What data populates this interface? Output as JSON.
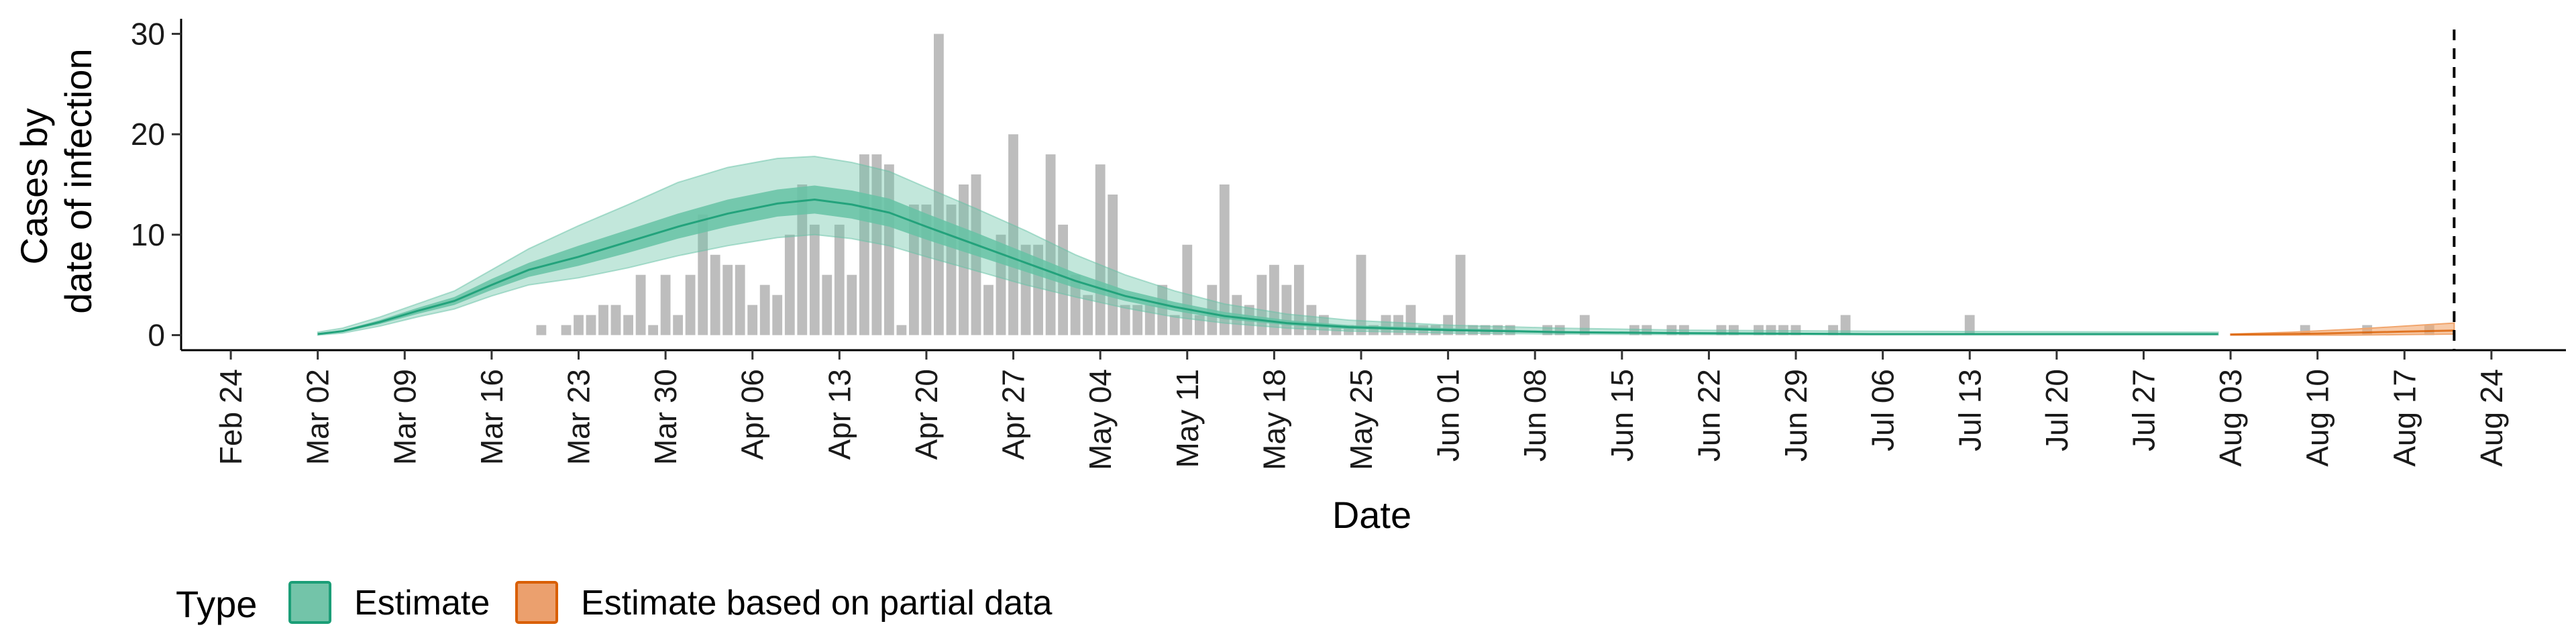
{
  "chart_data": {
    "type": "bar",
    "title": "",
    "xlabel": "Date",
    "ylabel_lines": [
      "Cases by",
      "date of infection"
    ],
    "y_ticks": [
      0,
      10,
      20,
      30
    ],
    "ylim": [
      -1.5,
      31.5
    ],
    "xlim": [
      "2020-02-20",
      "2020-08-30"
    ],
    "x_tick_dates": [
      "2020-02-24",
      "2020-03-02",
      "2020-03-09",
      "2020-03-16",
      "2020-03-23",
      "2020-03-30",
      "2020-04-06",
      "2020-04-13",
      "2020-04-20",
      "2020-04-27",
      "2020-05-04",
      "2020-05-11",
      "2020-05-18",
      "2020-05-25",
      "2020-06-01",
      "2020-06-08",
      "2020-06-15",
      "2020-06-22",
      "2020-06-29",
      "2020-07-06",
      "2020-07-13",
      "2020-07-20",
      "2020-07-27",
      "2020-08-03",
      "2020-08-10",
      "2020-08-17",
      "2020-08-24"
    ],
    "x_tick_labels": [
      "Feb 24",
      "Mar 02",
      "Mar 09",
      "Mar 16",
      "Mar 23",
      "Mar 30",
      "Apr 06",
      "Apr 13",
      "Apr 20",
      "Apr 27",
      "May 04",
      "May 11",
      "May 18",
      "May 25",
      "Jun 01",
      "Jun 08",
      "Jun 15",
      "Jun 22",
      "Jun 29",
      "Jul 06",
      "Jul 13",
      "Jul 20",
      "Jul 27",
      "Aug 03",
      "Aug 10",
      "Aug 17",
      "Aug 24"
    ],
    "reported_cases": [
      [
        "2020-03-20",
        1
      ],
      [
        "2020-03-22",
        1
      ],
      [
        "2020-03-23",
        2
      ],
      [
        "2020-03-24",
        2
      ],
      [
        "2020-03-25",
        3
      ],
      [
        "2020-03-26",
        3
      ],
      [
        "2020-03-27",
        2
      ],
      [
        "2020-03-28",
        6
      ],
      [
        "2020-03-29",
        1
      ],
      [
        "2020-03-30",
        6
      ],
      [
        "2020-03-31",
        2
      ],
      [
        "2020-04-01",
        6
      ],
      [
        "2020-04-02",
        12
      ],
      [
        "2020-04-03",
        8
      ],
      [
        "2020-04-04",
        7
      ],
      [
        "2020-04-05",
        7
      ],
      [
        "2020-04-06",
        3
      ],
      [
        "2020-04-07",
        5
      ],
      [
        "2020-04-08",
        4
      ],
      [
        "2020-04-09",
        10
      ],
      [
        "2020-04-10",
        15
      ],
      [
        "2020-04-11",
        11
      ],
      [
        "2020-04-12",
        6
      ],
      [
        "2020-04-13",
        11
      ],
      [
        "2020-04-14",
        6
      ],
      [
        "2020-04-15",
        18
      ],
      [
        "2020-04-16",
        18
      ],
      [
        "2020-04-17",
        17
      ],
      [
        "2020-04-18",
        1
      ],
      [
        "2020-04-19",
        13
      ],
      [
        "2020-04-20",
        13
      ],
      [
        "2020-04-21",
        30
      ],
      [
        "2020-04-22",
        13
      ],
      [
        "2020-04-23",
        15
      ],
      [
        "2020-04-24",
        16
      ],
      [
        "2020-04-25",
        5
      ],
      [
        "2020-04-26",
        10
      ],
      [
        "2020-04-27",
        20
      ],
      [
        "2020-04-28",
        9
      ],
      [
        "2020-04-29",
        9
      ],
      [
        "2020-04-30",
        18
      ],
      [
        "2020-05-01",
        11
      ],
      [
        "2020-05-02",
        6
      ],
      [
        "2020-05-03",
        4
      ],
      [
        "2020-05-04",
        17
      ],
      [
        "2020-05-05",
        14
      ],
      [
        "2020-05-06",
        3
      ],
      [
        "2020-05-07",
        3
      ],
      [
        "2020-05-08",
        3
      ],
      [
        "2020-05-09",
        5
      ],
      [
        "2020-05-10",
        2
      ],
      [
        "2020-05-11",
        9
      ],
      [
        "2020-05-12",
        2
      ],
      [
        "2020-05-13",
        5
      ],
      [
        "2020-05-14",
        15
      ],
      [
        "2020-05-15",
        4
      ],
      [
        "2020-05-16",
        3
      ],
      [
        "2020-05-17",
        6
      ],
      [
        "2020-05-18",
        7
      ],
      [
        "2020-05-19",
        5
      ],
      [
        "2020-05-20",
        7
      ],
      [
        "2020-05-21",
        3
      ],
      [
        "2020-05-22",
        2
      ],
      [
        "2020-05-23",
        1
      ],
      [
        "2020-05-24",
        1
      ],
      [
        "2020-05-25",
        8
      ],
      [
        "2020-05-26",
        1
      ],
      [
        "2020-05-27",
        2
      ],
      [
        "2020-05-28",
        2
      ],
      [
        "2020-05-29",
        3
      ],
      [
        "2020-05-30",
        1
      ],
      [
        "2020-05-31",
        1
      ],
      [
        "2020-06-01",
        2
      ],
      [
        "2020-06-02",
        8
      ],
      [
        "2020-06-03",
        1
      ],
      [
        "2020-06-04",
        1
      ],
      [
        "2020-06-05",
        1
      ],
      [
        "2020-06-06",
        1
      ],
      [
        "2020-06-09",
        1
      ],
      [
        "2020-06-10",
        1
      ],
      [
        "2020-06-12",
        2
      ],
      [
        "2020-06-16",
        1
      ],
      [
        "2020-06-17",
        1
      ],
      [
        "2020-06-19",
        1
      ],
      [
        "2020-06-20",
        1
      ],
      [
        "2020-06-23",
        1
      ],
      [
        "2020-06-24",
        1
      ],
      [
        "2020-06-26",
        1
      ],
      [
        "2020-06-27",
        1
      ],
      [
        "2020-06-28",
        1
      ],
      [
        "2020-06-29",
        1
      ],
      [
        "2020-07-02",
        1
      ],
      [
        "2020-07-03",
        2
      ],
      [
        "2020-07-13",
        2
      ],
      [
        "2020-08-09",
        1
      ],
      [
        "2020-08-14",
        1
      ],
      [
        "2020-08-19",
        1
      ]
    ],
    "estimate_median": [
      [
        "2020-03-02",
        0.1
      ],
      [
        "2020-03-04",
        0.4
      ],
      [
        "2020-03-07",
        1.3
      ],
      [
        "2020-03-10",
        2.4
      ],
      [
        "2020-03-13",
        3.4
      ],
      [
        "2020-03-16",
        5.0
      ],
      [
        "2020-03-19",
        6.5
      ],
      [
        "2020-03-23",
        7.8
      ],
      [
        "2020-03-27",
        9.3
      ],
      [
        "2020-03-31",
        10.8
      ],
      [
        "2020-04-04",
        12.1
      ],
      [
        "2020-04-08",
        13.1
      ],
      [
        "2020-04-11",
        13.5
      ],
      [
        "2020-04-14",
        13.0
      ],
      [
        "2020-04-17",
        12.2
      ],
      [
        "2020-04-20",
        10.8
      ],
      [
        "2020-04-24",
        9.0
      ],
      [
        "2020-04-28",
        7.2
      ],
      [
        "2020-05-02",
        5.4
      ],
      [
        "2020-05-06",
        3.9
      ],
      [
        "2020-05-10",
        2.8
      ],
      [
        "2020-05-14",
        1.9
      ],
      [
        "2020-05-19",
        1.2
      ],
      [
        "2020-05-24",
        0.8
      ],
      [
        "2020-06-01",
        0.5
      ],
      [
        "2020-06-10",
        0.3
      ],
      [
        "2020-06-20",
        0.2
      ],
      [
        "2020-07-05",
        0.1
      ],
      [
        "2020-08-02",
        0.1
      ]
    ],
    "estimate_inner_band": [
      [
        "2020-03-02",
        0.0,
        0.2
      ],
      [
        "2020-03-04",
        0.3,
        0.5
      ],
      [
        "2020-03-07",
        1.1,
        1.5
      ],
      [
        "2020-03-10",
        2.1,
        2.7
      ],
      [
        "2020-03-13",
        3.0,
        3.8
      ],
      [
        "2020-03-16",
        4.5,
        5.6
      ],
      [
        "2020-03-19",
        5.8,
        7.2
      ],
      [
        "2020-03-23",
        6.9,
        8.9
      ],
      [
        "2020-03-27",
        8.2,
        10.5
      ],
      [
        "2020-03-31",
        9.6,
        12.1
      ],
      [
        "2020-04-04",
        10.8,
        13.5
      ],
      [
        "2020-04-08",
        11.8,
        14.5
      ],
      [
        "2020-04-11",
        12.1,
        14.9
      ],
      [
        "2020-04-14",
        11.6,
        14.4
      ],
      [
        "2020-04-17",
        10.8,
        13.6
      ],
      [
        "2020-04-20",
        9.5,
        12.1
      ],
      [
        "2020-04-24",
        7.9,
        10.2
      ],
      [
        "2020-04-28",
        6.3,
        8.2
      ],
      [
        "2020-05-02",
        4.7,
        6.2
      ],
      [
        "2020-05-06",
        3.4,
        4.5
      ],
      [
        "2020-05-10",
        2.4,
        3.3
      ],
      [
        "2020-05-14",
        1.6,
        2.3
      ],
      [
        "2020-05-19",
        1.0,
        1.5
      ],
      [
        "2020-05-24",
        0.6,
        1.0
      ],
      [
        "2020-06-01",
        0.4,
        0.7
      ],
      [
        "2020-06-10",
        0.2,
        0.4
      ],
      [
        "2020-06-20",
        0.1,
        0.3
      ],
      [
        "2020-07-05",
        0.05,
        0.2
      ],
      [
        "2020-08-02",
        0.05,
        0.2
      ]
    ],
    "estimate_outer_band": [
      [
        "2020-03-02",
        0.0,
        0.3
      ],
      [
        "2020-03-04",
        0.2,
        0.7
      ],
      [
        "2020-03-07",
        0.9,
        1.8
      ],
      [
        "2020-03-10",
        1.8,
        3.1
      ],
      [
        "2020-03-13",
        2.6,
        4.4
      ],
      [
        "2020-03-16",
        3.9,
        6.5
      ],
      [
        "2020-03-19",
        5.0,
        8.6
      ],
      [
        "2020-03-23",
        5.7,
        10.9
      ],
      [
        "2020-03-27",
        6.7,
        13.0
      ],
      [
        "2020-03-31",
        7.9,
        15.2
      ],
      [
        "2020-04-04",
        8.9,
        16.7
      ],
      [
        "2020-04-08",
        9.7,
        17.6
      ],
      [
        "2020-04-11",
        10.0,
        17.8
      ],
      [
        "2020-04-14",
        9.6,
        17.2
      ],
      [
        "2020-04-17",
        8.9,
        16.3
      ],
      [
        "2020-04-20",
        7.8,
        14.7
      ],
      [
        "2020-04-24",
        6.4,
        12.6
      ],
      [
        "2020-04-28",
        5.0,
        10.4
      ],
      [
        "2020-05-02",
        3.8,
        8.0
      ],
      [
        "2020-05-06",
        2.7,
        6.0
      ],
      [
        "2020-05-10",
        1.8,
        4.4
      ],
      [
        "2020-05-14",
        1.2,
        3.1
      ],
      [
        "2020-05-19",
        0.7,
        2.1
      ],
      [
        "2020-05-24",
        0.4,
        1.5
      ],
      [
        "2020-06-01",
        0.2,
        1.0
      ],
      [
        "2020-06-10",
        0.1,
        0.7
      ],
      [
        "2020-06-20",
        0.05,
        0.5
      ],
      [
        "2020-07-05",
        0.02,
        0.4
      ],
      [
        "2020-08-02",
        0.02,
        0.3
      ]
    ],
    "partial_estimate_band": [
      [
        "2020-08-03",
        0.0,
        0.1
      ],
      [
        "2020-08-08",
        0.0,
        0.3
      ],
      [
        "2020-08-13",
        0.0,
        0.6
      ],
      [
        "2020-08-17",
        0.05,
        0.9
      ],
      [
        "2020-08-21",
        0.1,
        1.2
      ]
    ],
    "partial_estimate_median": [
      [
        "2020-08-03",
        0.05
      ],
      [
        "2020-08-10",
        0.15
      ],
      [
        "2020-08-17",
        0.35
      ],
      [
        "2020-08-21",
        0.45
      ]
    ],
    "vline_date": "2020-08-21",
    "colors": {
      "bars": "#bdbdbd",
      "estimate_line": "#1b9e77",
      "estimate_fill": "#66c2a5",
      "partial_line": "#d95f02",
      "partial_fill": "#f1a66e"
    },
    "legend": {
      "title": "Type",
      "placement": "bottom-left",
      "items": [
        {
          "label": "Estimate",
          "fill": "#73c4a9",
          "border": "#1b9e77"
        },
        {
          "label": "Estimate based on partial data",
          "fill": "#eba06e",
          "border": "#d95f02"
        }
      ]
    }
  }
}
